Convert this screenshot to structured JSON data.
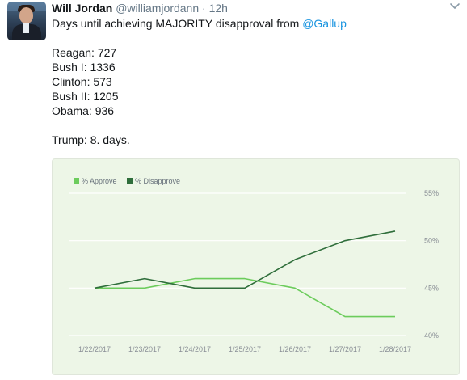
{
  "tweet": {
    "display_name": "Will Jordan",
    "handle": "@williamjordann",
    "separator": "·",
    "timestamp": "12h",
    "line1_prefix": "Days until achieving MAJORITY disapproval from ",
    "mention": "@Gallup",
    "presidents": [
      "Reagan: 727",
      "Bush I: 1336",
      "Clinton: 573",
      "Bush II: 1205",
      "Obama: 936"
    ],
    "trump_line": "Trump: 8. days."
  },
  "icons": {
    "menu": "chevron-down-icon"
  },
  "colors": {
    "approve": "#6ccc5c",
    "disapprove": "#2f6e3b",
    "mention": "#1b95e0",
    "card_bg": "#edf6e7"
  },
  "chart_data": {
    "type": "line",
    "legend": [
      "% Approve",
      "% Disapprove"
    ],
    "legend_position": "top-left",
    "categories": [
      "1/22/2017",
      "1/23/2017",
      "1/24/2017",
      "1/25/2017",
      "1/26/2017",
      "1/27/2017",
      "1/28/2017"
    ],
    "series": [
      {
        "name": "% Approve",
        "values": [
          45,
          45,
          46,
          46,
          45,
          42,
          42
        ]
      },
      {
        "name": "% Disapprove",
        "values": [
          45,
          46,
          45,
          45,
          48,
          50,
          51
        ]
      }
    ],
    "y_ticks": [
      {
        "value": 55,
        "label": "55%"
      },
      {
        "value": 50,
        "label": "50%"
      },
      {
        "value": 45,
        "label": "45%"
      },
      {
        "value": 40,
        "label": "40%"
      }
    ],
    "ylim": [
      40,
      55
    ],
    "grid": true
  }
}
